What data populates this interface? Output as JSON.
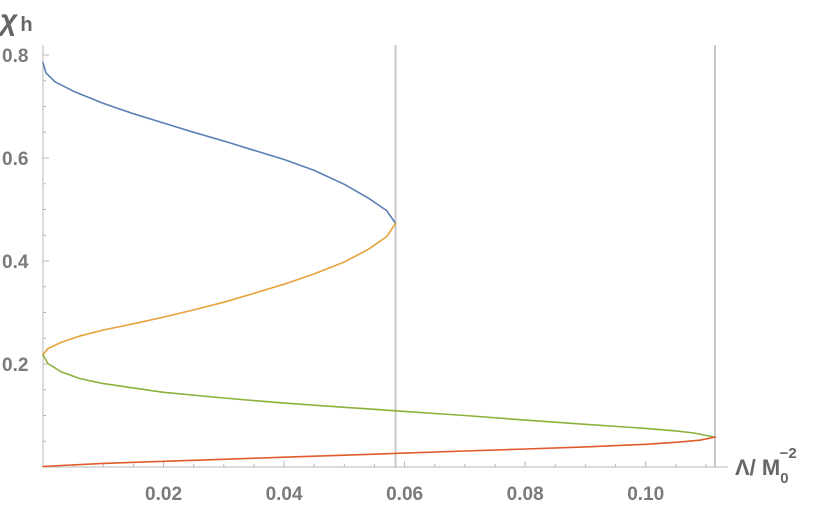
{
  "chart_data": {
    "type": "line",
    "xlabel": {
      "main": "Λ/ M",
      "sub": "0",
      "sup": "−2"
    },
    "ylabel": {
      "main": "χ",
      "sub": "h"
    },
    "xlim": [
      0,
      0.1115
    ],
    "ylim": [
      0,
      0.8
    ],
    "xticks": [
      {
        "value": 0.02,
        "label": "0.02"
      },
      {
        "value": 0.04,
        "label": "0.04"
      },
      {
        "value": 0.06,
        "label": "0.06"
      },
      {
        "value": 0.08,
        "label": "0.08"
      },
      {
        "value": 0.1,
        "label": "0.10"
      }
    ],
    "yticks": [
      {
        "value": 0.2,
        "label": "0.2"
      },
      {
        "value": 0.4,
        "label": "0.4"
      },
      {
        "value": 0.6,
        "label": "0.6"
      },
      {
        "value": 0.8,
        "label": "0.8"
      }
    ],
    "vertical_lines": [
      0.0585,
      0.1115
    ],
    "grid": false,
    "legend": "none",
    "colors": {
      "axis": "#b8b8b8",
      "vline": "#c8c8c8",
      "tick_text": "#7a7a7a",
      "title_text": "#666666"
    },
    "series": [
      {
        "color": "#5b80b5",
        "x": [
          0,
          0.0005,
          0.002,
          0.005,
          0.01,
          0.015,
          0.02,
          0.025,
          0.03,
          0.035,
          0.04,
          0.045,
          0.05,
          0.054,
          0.057,
          0.0585
        ],
        "y": [
          0.785,
          0.765,
          0.748,
          0.73,
          0.706,
          0.686,
          0.668,
          0.65,
          0.633,
          0.615,
          0.597,
          0.576,
          0.549,
          0.522,
          0.498,
          0.473
        ]
      },
      {
        "color": "#e6a33a",
        "x": [
          0.0585,
          0.057,
          0.054,
          0.05,
          0.045,
          0.04,
          0.035,
          0.03,
          0.025,
          0.02,
          0.015,
          0.01,
          0.006,
          0.003,
          0.0008,
          0
        ],
        "y": [
          0.473,
          0.447,
          0.423,
          0.398,
          0.375,
          0.355,
          0.337,
          0.32,
          0.305,
          0.291,
          0.278,
          0.266,
          0.254,
          0.242,
          0.23,
          0.218
        ]
      },
      {
        "color": "#8cb23c",
        "x": [
          0,
          0.0008,
          0.003,
          0.006,
          0.01,
          0.02,
          0.03,
          0.04,
          0.05,
          0.06,
          0.07,
          0.08,
          0.09,
          0.1,
          0.105,
          0.108,
          0.1115
        ],
        "y": [
          0.218,
          0.201,
          0.185,
          0.172,
          0.162,
          0.145,
          0.134,
          0.124,
          0.116,
          0.108,
          0.1,
          0.091,
          0.083,
          0.075,
          0.07,
          0.066,
          0.058
        ]
      },
      {
        "color": "#e05a2b",
        "x": [
          0.1115,
          0.109,
          0.105,
          0.1,
          0.09,
          0.08,
          0.07,
          0.06,
          0.05,
          0.04,
          0.03,
          0.02,
          0.01,
          0.003,
          0
        ],
        "y": [
          0.058,
          0.052,
          0.048,
          0.044,
          0.039,
          0.035,
          0.031,
          0.027,
          0.023,
          0.019,
          0.015,
          0.011,
          0.007,
          0.003,
          0.001
        ]
      }
    ]
  }
}
